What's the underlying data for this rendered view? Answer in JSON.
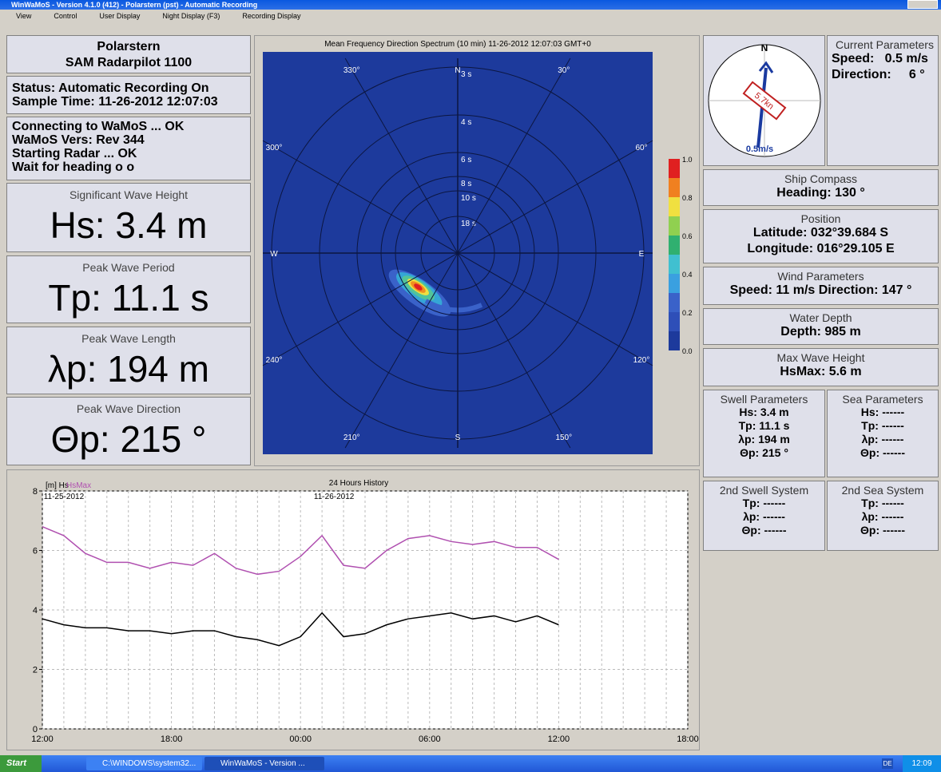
{
  "window": {
    "title": "WinWaMoS - Version 4.1.0 (412)  -  Polarstern (pst)  -  Automatic Recording"
  },
  "menu": [
    "View",
    "Control",
    "User Display",
    "Night Display (F3)",
    "Recording Display"
  ],
  "header": {
    "ship": "Polarstern",
    "radar": "SAM Radarpilot 1100"
  },
  "status": [
    "Status: Automatic Recording On",
    "Sample Time: 11-26-2012 12:07:03"
  ],
  "log": [
    "Connecting to WaMoS ... OK",
    "WaMoS Vers: Rev 344",
    "Starting Radar ... OK",
    "Wait for heading o o"
  ],
  "big_params": [
    {
      "label": "Significant Wave Height",
      "value": "Hs: 3.4 m"
    },
    {
      "label": "Peak Wave Period",
      "value": "Tp: 11.1 s"
    },
    {
      "label": "Peak Wave Length",
      "value": "λp: 194 m"
    },
    {
      "label": "Peak Wave Direction",
      "value": "Θp: 215 °"
    }
  ],
  "spectrum": {
    "title": "Mean Frequency Direction Spectrum (10 min) 11-26-2012 12:07:03 GMT+0",
    "direction_labels": [
      "N",
      "30°",
      "60°",
      "E",
      "120°",
      "150°",
      "S",
      "210°",
      "240°",
      "W",
      "300°",
      "330°"
    ],
    "period_labels": [
      "3 s",
      "4 s",
      "6 s",
      "8 s",
      "10 s",
      "18 s"
    ],
    "colorbar_ticks": [
      "1.0",
      "0.8",
      "0.6",
      "0.4",
      "0.2",
      "0.0"
    ]
  },
  "current": {
    "north": "N",
    "ship_speed": "5.7kn",
    "current_speed": "0.5m/s",
    "title": "Current Parameters",
    "lines": [
      "Speed:   0.5 m/s",
      "Direction:     6 °"
    ]
  },
  "panels": [
    {
      "title": "Ship Compass",
      "lines": [
        "Heading: 130 °"
      ]
    },
    {
      "title": "Position",
      "lines": [
        "Latitude: 032°39.684 S",
        "Longitude: 016°29.105 E"
      ]
    },
    {
      "title": "Wind Parameters",
      "lines": [
        "Speed: 11 m/s  Direction: 147 °"
      ]
    },
    {
      "title": "Water Depth",
      "lines": [
        "Depth: 985 m"
      ]
    },
    {
      "title": "Max Wave Height",
      "lines": [
        "HsMax: 5.6 m"
      ]
    }
  ],
  "systems": [
    {
      "title": "Swell Parameters",
      "lines": [
        "Hs: 3.4 m",
        "Tp: 11.1 s",
        "λp: 194 m",
        "Θp: 215 °"
      ]
    },
    {
      "title": "Sea Parameters",
      "lines": [
        "Hs: ------",
        "Tp: ------",
        "λp: ------",
        "Θp: ------"
      ]
    },
    {
      "title": "2nd Swell System",
      "lines": [
        "Tp: ------",
        "λp: ------",
        "Θp: ------"
      ]
    },
    {
      "title": "2nd Sea System",
      "lines": [
        "Tp: ------",
        "λp: ------",
        "Θp: ------"
      ]
    }
  ],
  "taskbar": {
    "start": "Start",
    "items": [
      "C:\\WINDOWS\\system32...",
      "WinWaMoS - Version ..."
    ],
    "lang": "DE",
    "clock": "12:09"
  },
  "chart_data": {
    "type": "line",
    "title": "24 Hours History",
    "annotations": [
      "11-25-2012",
      "11-26-2012"
    ],
    "categories": [
      "12:00",
      null,
      null,
      null,
      null,
      null,
      "18:00",
      null,
      null,
      null,
      null,
      null,
      "00:00",
      null,
      null,
      null,
      null,
      null,
      "06:00",
      null,
      null,
      null,
      null,
      null,
      "12:00",
      null,
      null,
      null,
      null,
      null,
      "18:00"
    ],
    "series": [
      {
        "name": "[m] Hs",
        "color": "#000000",
        "values": [
          3.7,
          3.5,
          3.4,
          3.4,
          3.3,
          3.3,
          3.2,
          3.3,
          3.3,
          3.1,
          3.0,
          2.8,
          3.1,
          3.9,
          3.1,
          3.2,
          3.5,
          3.7,
          3.8,
          3.9,
          3.7,
          3.8,
          3.6,
          3.8,
          3.5,
          null,
          null,
          null,
          null,
          null,
          null
        ]
      },
      {
        "name": "HsMax",
        "color": "#b050b0",
        "values": [
          6.8,
          6.5,
          5.9,
          5.6,
          5.6,
          5.4,
          5.6,
          5.5,
          5.9,
          5.4,
          5.2,
          5.3,
          5.8,
          6.5,
          5.5,
          5.4,
          6.0,
          6.4,
          6.5,
          6.3,
          6.2,
          6.3,
          6.1,
          6.1,
          5.7,
          null,
          null,
          null,
          null,
          null,
          null
        ]
      }
    ],
    "ylim": [
      0,
      8
    ],
    "yticks": [
      0,
      2,
      4,
      6,
      8
    ],
    "grid": true
  }
}
